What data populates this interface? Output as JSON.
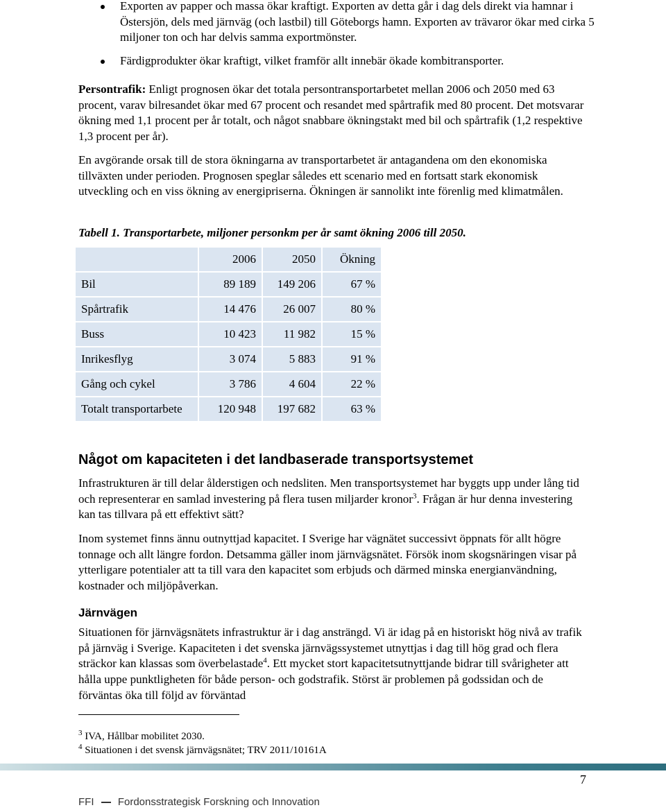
{
  "bullets": [
    "Exporten av papper och massa ökar kraftigt. Exporten av detta går i dag dels direkt via hamnar i Östersjön, dels med järnväg (och lastbil) till Göteborgs hamn. Exporten av trävaror ökar med cirka 5 miljoner ton och har delvis samma exportmönster.",
    "Färdigprodukter ökar kraftigt, vilket framför allt innebär ökade kombitransporter."
  ],
  "paragraphs": [
    {
      "lead": "Persontrafik:",
      "text": " Enligt prognosen ökar det totala persontransportarbetet mellan 2006 och 2050 med 63 procent, varav bilresandet ökar med 67 procent och resandet med spårtrafik med 80 procent. Det motsvarar ökning med 1,1 procent per år totalt, och något snabbare ökningstakt med bil och spårtrafik (1,2 respektive 1,3 procent per år)."
    },
    {
      "text": "En avgörande orsak till de stora ökningarna av transportarbetet är antagandena om den ekonomiska tillväxten under perioden. Prognosen speglar således ett scenario med en fortsatt stark ekonomisk utveckling och en viss ökning av energipriserna. Ökningen är sannolikt inte förenlig med klimatmålen."
    }
  ],
  "table": {
    "caption": "Tabell 1. Transportarbete, miljoner personkm per år samt ökning 2006 till 2050.",
    "header": [
      "2006",
      "2050",
      "Ökning"
    ],
    "rows": [
      [
        "Bil",
        "89 189",
        "149 206",
        "67 %"
      ],
      [
        "Spårtrafik",
        "14 476",
        "26 007",
        "80 %"
      ],
      [
        "Buss",
        "10 423",
        "11 982",
        "15 %"
      ],
      [
        "Inrikesflyg",
        "3 074",
        "5 883",
        "91 %"
      ],
      [
        "Gång och cykel",
        "3 786",
        "4 604",
        "22 %"
      ],
      [
        "Totalt transportarbete",
        "120 948",
        "197 682",
        "63 %"
      ]
    ]
  },
  "section": {
    "heading": "Något om kapaciteten i det landbaserade transportsystemet",
    "paragraphs": [
      {
        "text": "Infrastrukturen är till delar ålderstigen och nedsliten. Men transportsystemet har byggts upp under lång tid och representerar en samlad investering på flera tusen miljarder kronor",
        "sup": "3",
        "rest": ". Frågan är hur denna investering kan tas tillvara på ett effektivt sätt?"
      },
      {
        "text": "Inom systemet finns ännu outnyttjad kapacitet. I Sverige har vägnätet successivt öppnats för allt högre tonnage och allt längre fordon. Detsamma gäller inom järnvägsnätet. Försök inom skogsnäringen visar på ytterligare potentialer att ta till vara den kapacitet som erbjuds och därmed minska energianvändning, kostnader och miljöpåverkan."
      }
    ]
  },
  "subsection": {
    "heading": "Järnvägen",
    "paragraph": {
      "text": "Situationen för järnvägsnätets infrastruktur är i dag ansträngd. Vi är idag på en historiskt hög nivå av trafik på järnväg i Sverige. Kapaciteten i det svenska järnvägssystemet utnyttjas i dag till hög grad och flera sträckor kan klassas som överbelastade",
      "sup": "4",
      "rest": ". Ett mycket stort kapacitetsutnyttjande bidrar till svårigheter att hålla uppe punktligheten för både person- och godstrafik. Störst är problemen på godssidan och de förväntas öka till följd av förväntad"
    }
  },
  "footnotes": [
    {
      "number": "3",
      "text": "IVA, Hållbar mobilitet 2030."
    },
    {
      "number": "4",
      "text": "Situationen i det svensk järnvägsnätet; TRV 2011/10161A"
    }
  ],
  "page_number": "7",
  "footer": {
    "org": "FFI",
    "text": "Fordonsstrategisk Forskning och Innovation"
  }
}
